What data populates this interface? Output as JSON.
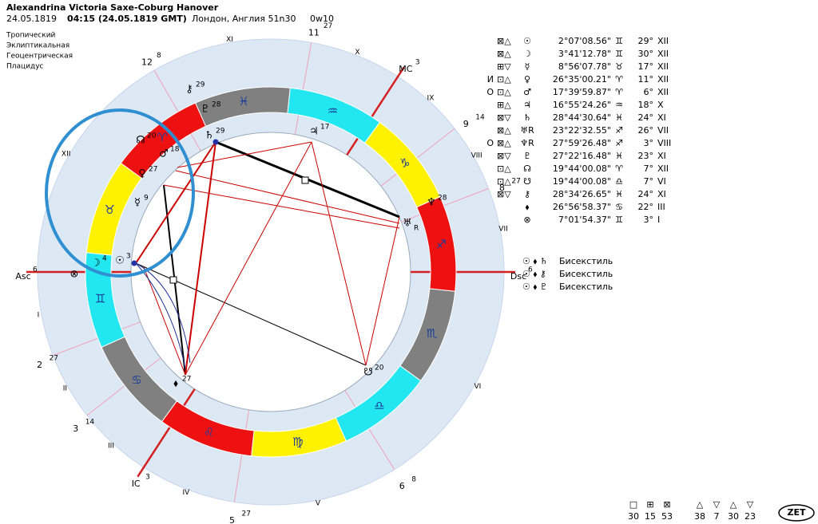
{
  "header": {
    "name": "Alexandrina Victoria Saxe-Coburg Hanover",
    "date": "24.05.1819",
    "time": "04:15 (24.05.1819 GMT)",
    "place": "Лондон, Англия 51n30",
    "longitude": "0w10"
  },
  "settings": [
    "Тропический",
    "Эклиптикальная",
    "Геоцентрическая",
    "Плацидус"
  ],
  "signs": [
    "♈",
    "♉",
    "♊",
    "♋",
    "♌",
    "♍",
    "♎",
    "♏",
    "♐",
    "♑",
    "♒",
    "♓"
  ],
  "houses": [
    "I",
    "II",
    "III",
    "IV",
    "V",
    "VI",
    "VII",
    "VIII",
    "IX",
    "X",
    "XI",
    "XII"
  ],
  "cusps": [
    {
      "label": "Asc",
      "deg": 6
    },
    {
      "label": "2",
      "deg": 27
    },
    {
      "label": "3",
      "deg": 14
    },
    {
      "label": "IC",
      "deg": 3
    },
    {
      "label": "5",
      "deg": 27
    },
    {
      "label": "6",
      "deg": 8
    },
    {
      "label": "Dsc",
      "deg": 6
    },
    {
      "label": "8",
      "deg": 27
    },
    {
      "label": "9",
      "deg": 14
    },
    {
      "label": "MC",
      "deg": 3
    },
    {
      "label": "11",
      "deg": 27
    },
    {
      "label": "12",
      "deg": 8
    }
  ],
  "wheel_planets": [
    {
      "glyph": "☽",
      "deg": 4
    },
    {
      "glyph": "☉",
      "deg": 3
    },
    {
      "glyph": "☿",
      "deg": 9
    },
    {
      "glyph": "♀",
      "deg": 27
    },
    {
      "glyph": "♂",
      "deg": 18
    },
    {
      "glyph": "☊",
      "deg": 20
    },
    {
      "glyph": "⚷",
      "deg": 29
    },
    {
      "glyph": "♇",
      "deg": 28
    },
    {
      "glyph": "♄",
      "deg": 29
    },
    {
      "glyph": "♃",
      "deg": 17
    },
    {
      "glyph": "♆",
      "deg": 28
    },
    {
      "glyph": "♅",
      "retro": "R"
    },
    {
      "glyph": "☋",
      "deg": 20
    },
    {
      "glyph": "⬧",
      "deg": 27
    },
    {
      "glyph": "⊗"
    }
  ],
  "table": [
    {
      "marks": "⊠△",
      "planet": "☉",
      "lon": "2°07'08.56\"",
      "sign": "♊",
      "deg": "29°",
      "house": "XII"
    },
    {
      "marks": "⊠△",
      "planet": "☽",
      "lon": "3°41'12.78\"",
      "sign": "♊",
      "deg": "30°",
      "house": "XII"
    },
    {
      "marks": "⊞▽",
      "planet": "☿",
      "lon": "8°56'07.78\"",
      "sign": "♉",
      "deg": "17°",
      "house": "XII"
    },
    {
      "prefix": "И",
      "marks": "⊡△",
      "planet": "♀",
      "lon": "26°35'00.21\"",
      "sign": "♈",
      "deg": "11°",
      "house": "XII"
    },
    {
      "prefix": "О",
      "marks": "⊡△",
      "planet": "♂",
      "lon": "17°39'59.87\"",
      "sign": "♈",
      "deg": "6°",
      "house": "XII"
    },
    {
      "marks": "⊞△",
      "planet": "♃",
      "lon": "16°55'24.26\"",
      "sign": "♒",
      "deg": "18°",
      "house": "X"
    },
    {
      "marks": "⊠▽",
      "planet": "♄",
      "lon": "28°44'30.64\"",
      "sign": "♓",
      "deg": "24°",
      "house": "XI"
    },
    {
      "marks": "⊠△",
      "planet": "♅R",
      "lon": "23°22'32.55\"",
      "sign": "♐",
      "deg": "26°",
      "house": "VII"
    },
    {
      "prefix": "О",
      "marks": "⊠△",
      "planet": "♆R",
      "lon": "27°59'26.48\"",
      "sign": "♐",
      "deg": "3°",
      "house": "VIII"
    },
    {
      "marks": "⊠▽",
      "planet": "♇",
      "lon": "27°22'16.48\"",
      "sign": "♓",
      "deg": "23°",
      "house": "XI"
    },
    {
      "marks": "⊡△",
      "planet": "☊",
      "lon": "19°44'00.08\"",
      "sign": "♈",
      "deg": "7°",
      "house": "XII"
    },
    {
      "marks": "⊡△",
      "planet": "☋",
      "lon": "19°44'00.08\"",
      "sign": "♎",
      "deg": "7°",
      "house": "VI"
    },
    {
      "marks": "⊠▽",
      "planet": "⚷",
      "lon": "28°34'26.65\"",
      "sign": "♓",
      "deg": "24°",
      "house": "XI"
    },
    {
      "planet": "⬧",
      "lon": "26°56'58.37\"",
      "sign": "♋",
      "deg": "22°",
      "house": "III"
    },
    {
      "planet": "⊗",
      "lon": "7°01'54.37\"",
      "sign": "♊",
      "deg": "3°",
      "house": "I"
    }
  ],
  "aspects": [
    {
      "glyphs": "☉ ⬧ ♄",
      "label": "Бисекстиль"
    },
    {
      "glyphs": "☉ ⬧ ⚷",
      "label": "Бисекстиль"
    },
    {
      "glyphs": "☉ ⬧ ♇",
      "label": "Бисекстиль"
    }
  ],
  "stats_squares": [
    {
      "symbol": "□",
      "value": 30
    },
    {
      "symbol": "⊞",
      "value": 15
    },
    {
      "symbol": "⊠",
      "value": 53
    }
  ],
  "stats_triangles": [
    {
      "symbol": "△",
      "value": 38
    },
    {
      "symbol": "▽",
      "value": 7
    },
    {
      "symbol": "△",
      "value": 30
    },
    {
      "symbol": "▽",
      "value": 23
    }
  ],
  "button": "ZET"
}
